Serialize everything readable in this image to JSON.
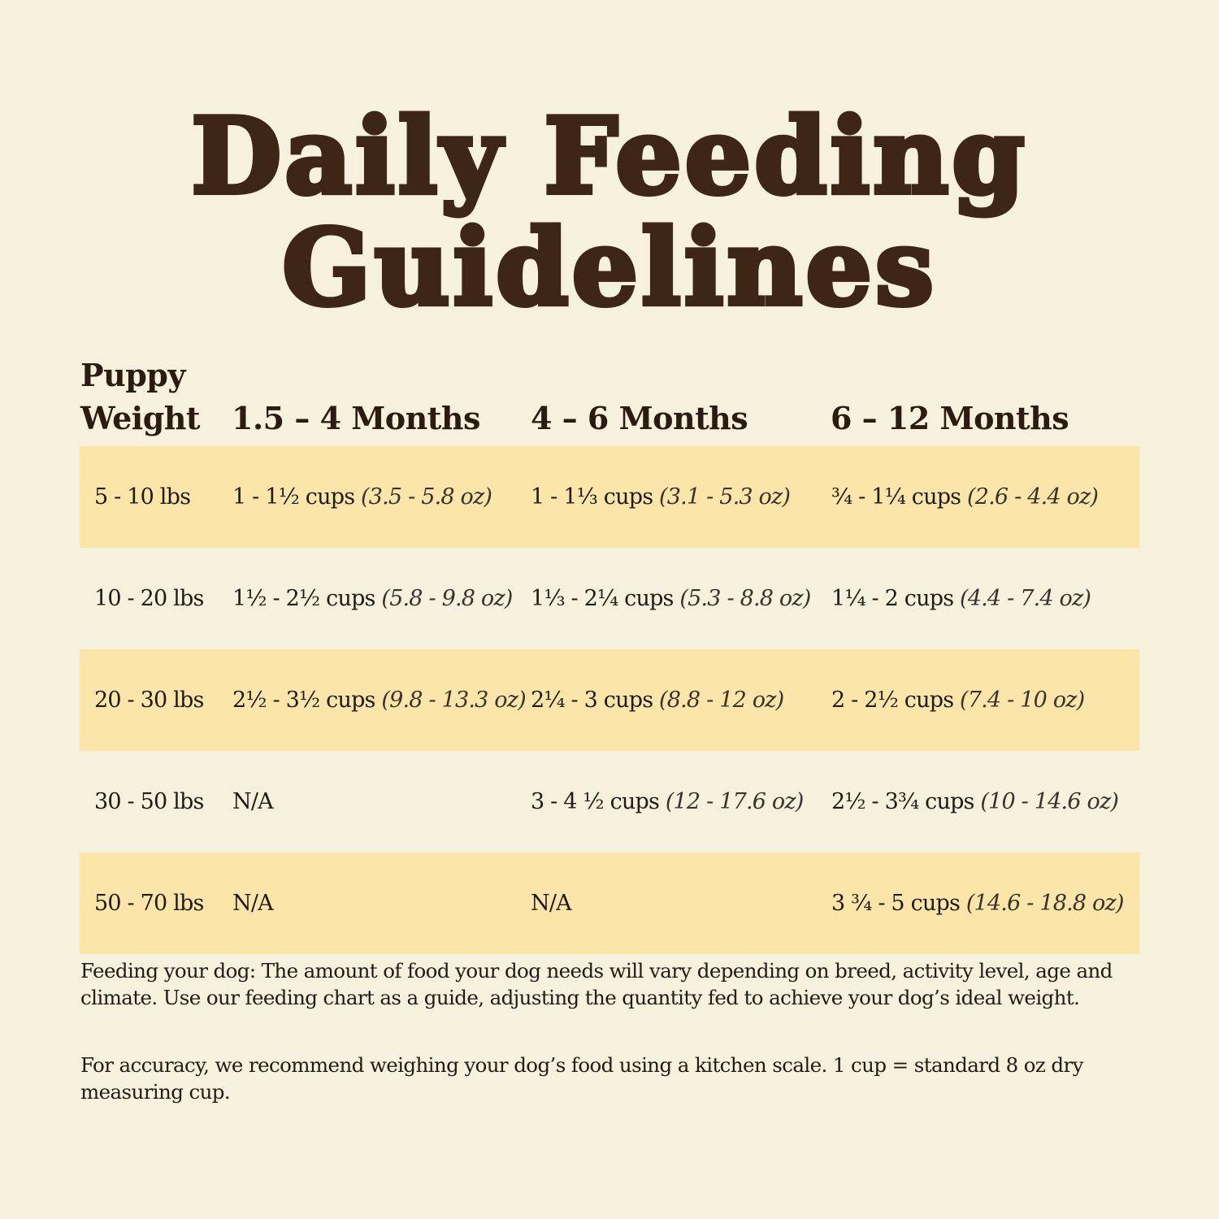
{
  "title": {
    "line1": "Daily Feeding",
    "line2": "Guidelines"
  },
  "colors": {
    "background": "#f6f1dc",
    "row_highlight": "#fbe5a8",
    "title": "#3d2616",
    "text": "#211a15"
  },
  "table": {
    "headers": {
      "weight_line1": "Puppy",
      "weight_line2": "Weight",
      "col1": "1.5 – 4 Months",
      "col2": "4 – 6 Months",
      "col3": "6 – 12 Months"
    },
    "rows": [
      {
        "weight": "5 - 10 lbs",
        "cells": [
          {
            "cups": "1 - 1½ cups ",
            "oz": "(3.5 - 5.8 oz)"
          },
          {
            "cups": "1 - 1⅓ cups ",
            "oz": "(3.1 - 5.3 oz)"
          },
          {
            "cups": "¾ - 1¼ cups ",
            "oz": "(2.6 - 4.4 oz)"
          }
        ]
      },
      {
        "weight": "10 - 20 lbs",
        "cells": [
          {
            "cups": "1½ - 2½ cups ",
            "oz": "(5.8 - 9.8 oz)"
          },
          {
            "cups": "1⅓ - 2¼ cups ",
            "oz": "(5.3 - 8.8 oz)"
          },
          {
            "cups": "1¼ - 2 cups ",
            "oz": "(4.4 - 7.4 oz)"
          }
        ]
      },
      {
        "weight": "20 - 30 lbs",
        "cells": [
          {
            "cups": "2½ - 3½ cups ",
            "oz": "(9.8 - 13.3 oz)"
          },
          {
            "cups": "2¼ - 3 cups ",
            "oz": "(8.8 - 12 oz)"
          },
          {
            "cups": "2 - 2½ cups ",
            "oz": "(7.4 - 10 oz)"
          }
        ]
      },
      {
        "weight": "30 - 50 lbs",
        "cells": [
          {
            "cups": "N/A",
            "oz": ""
          },
          {
            "cups": "3 - 4 ½ cups ",
            "oz": "(12 - 17.6 oz)"
          },
          {
            "cups": "2½ - 3¾ cups ",
            "oz": "(10 - 14.6 oz)"
          }
        ]
      },
      {
        "weight": "50 - 70 lbs",
        "cells": [
          {
            "cups": "N/A",
            "oz": ""
          },
          {
            "cups": "N/A",
            "oz": ""
          },
          {
            "cups": "3 ¾ - 5 cups ",
            "oz": "(14.6 - 18.8 oz)"
          }
        ]
      }
    ]
  },
  "footer": {
    "note1": "Feeding your dog: The amount of food your dog needs will vary depending on breed, activity level, age and climate. Use our feeding chart as a guide, adjusting the quantity fed to achieve your dog’s ideal weight.",
    "note2": "For accuracy, we recommend weighing your dog’s food using a kitchen scale. 1 cup = standard 8 oz dry measuring cup."
  }
}
